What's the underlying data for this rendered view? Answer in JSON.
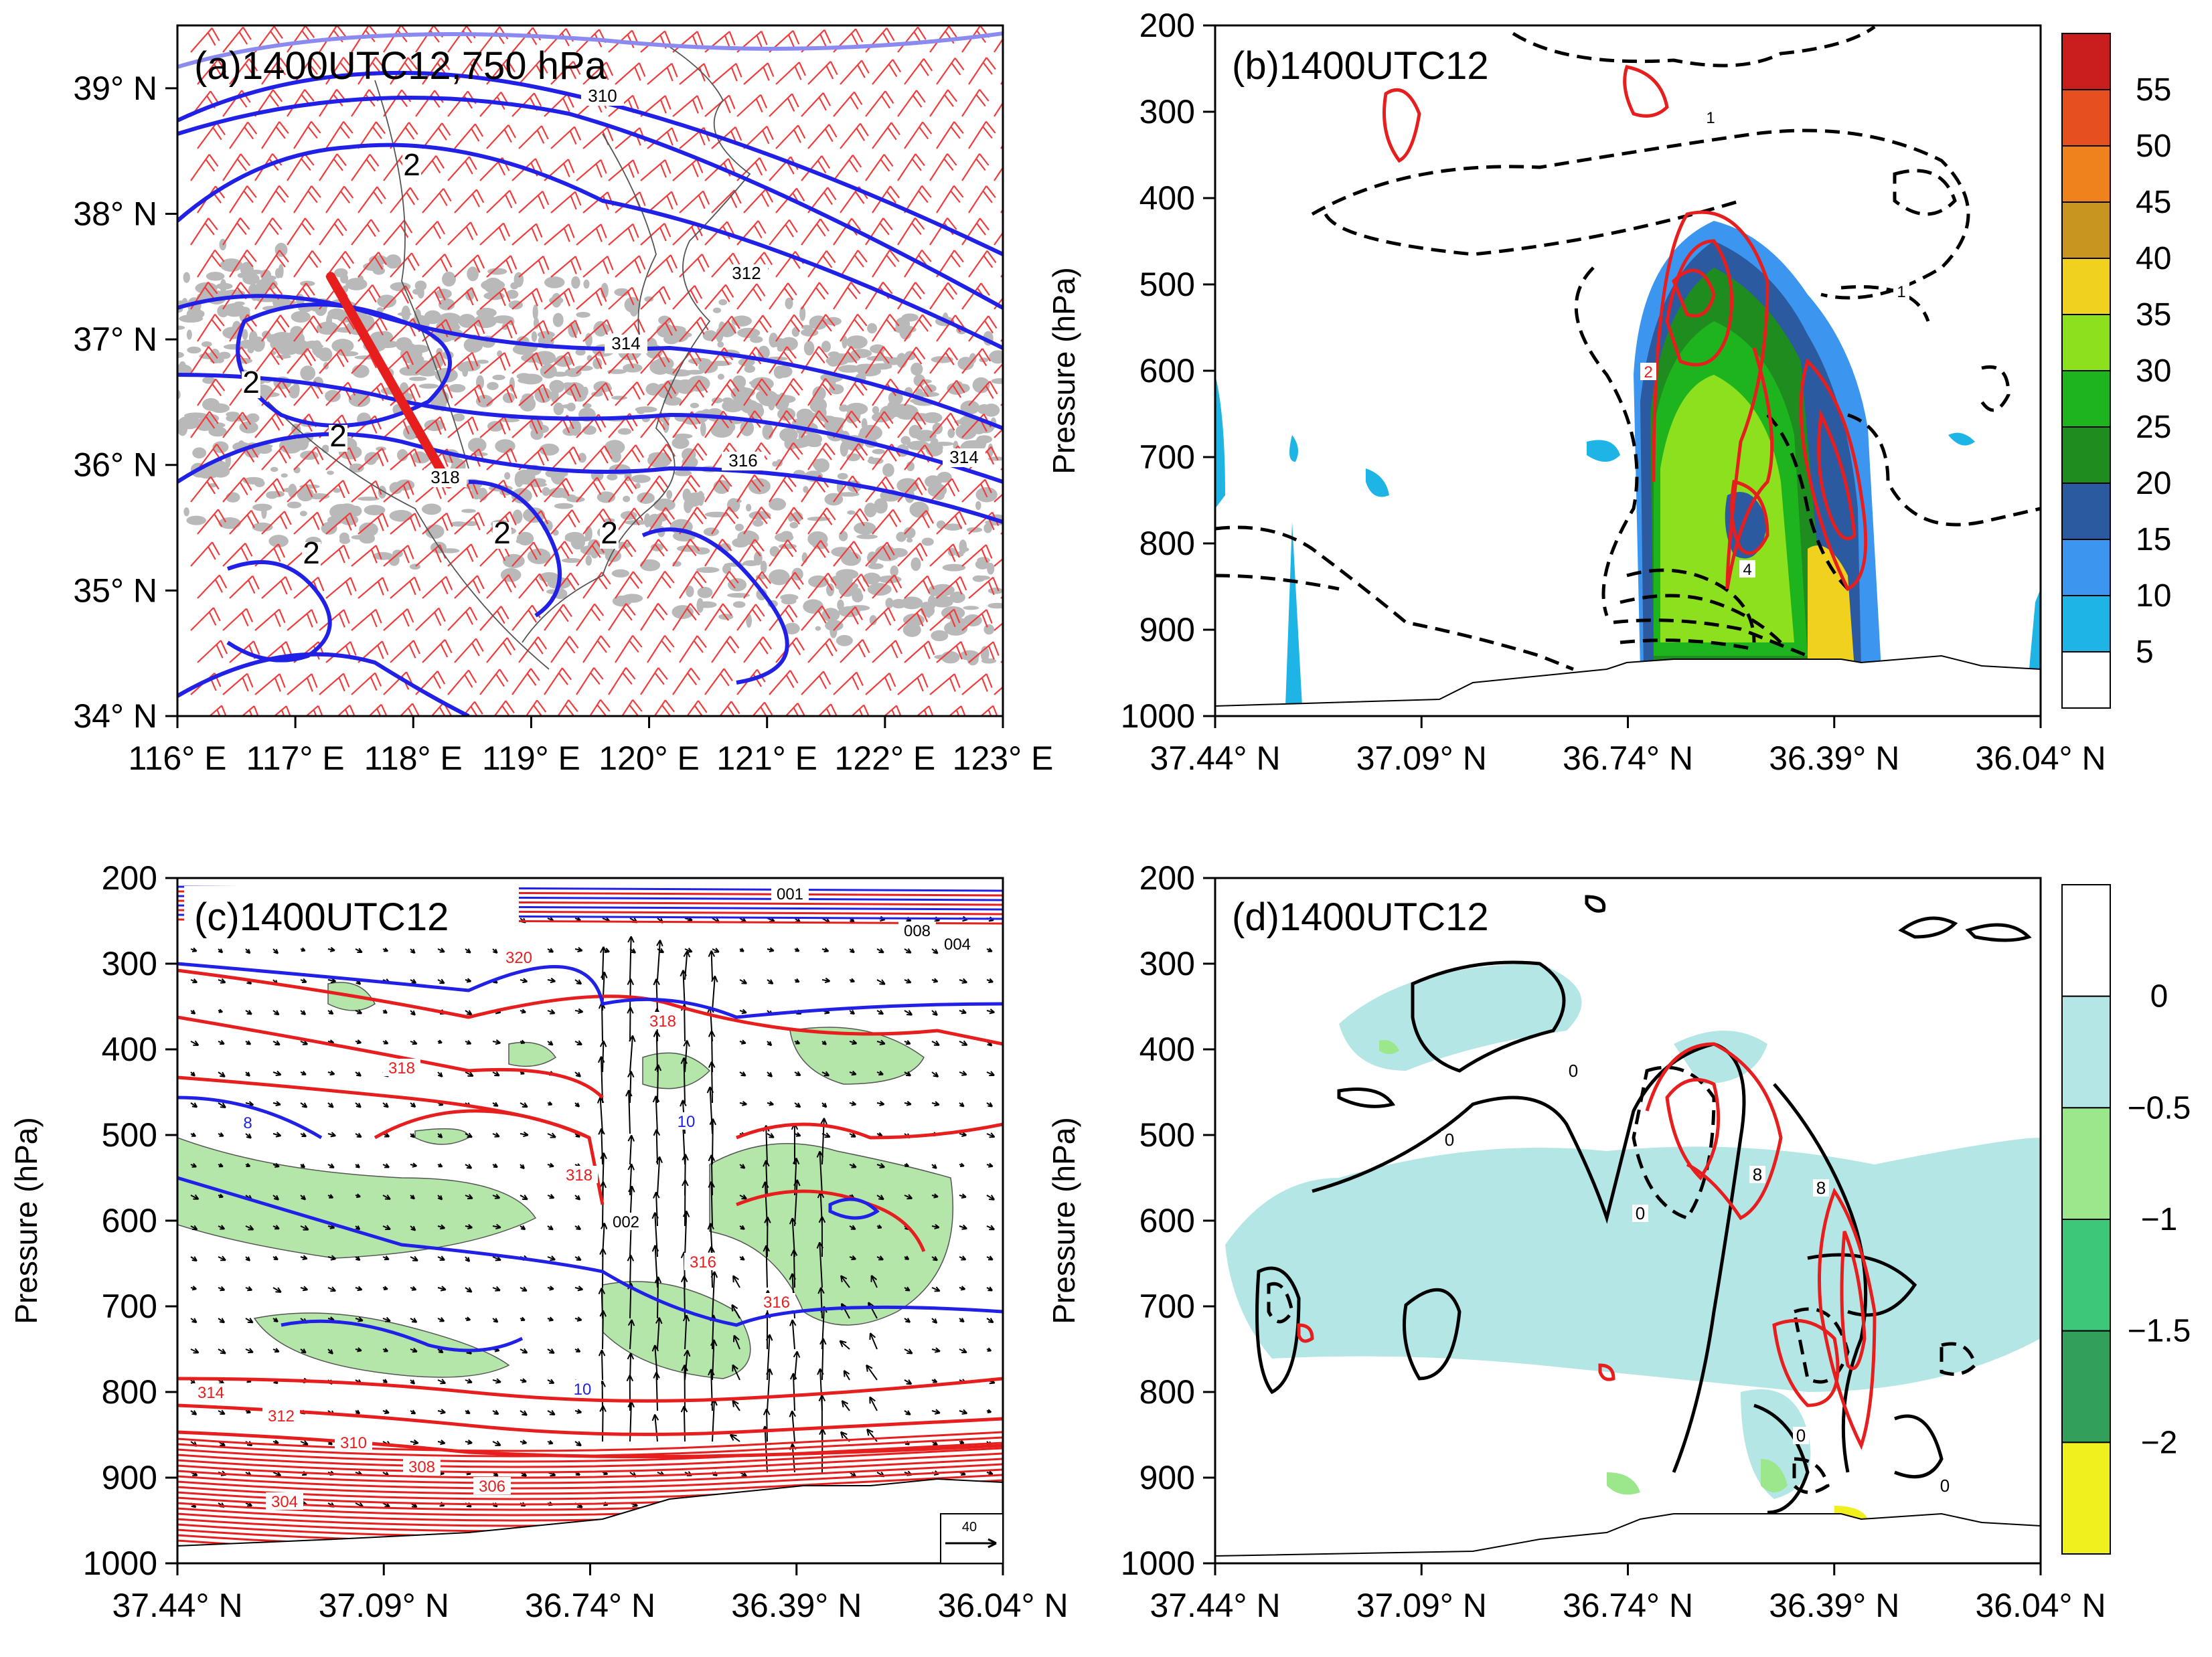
{
  "chart_data": [
    {
      "type": "map",
      "title": "(a)1400UTC12,750 hPa",
      "x_ticks": [
        "116° E",
        "117° E",
        "118° E",
        "119° E",
        "120° E",
        "121° E",
        "122° E",
        "123° E"
      ],
      "y_ticks": [
        "39° N",
        "38° N",
        "37° N",
        "36° N",
        "35° N",
        "34° N"
      ],
      "xlim": [
        116,
        123
      ],
      "ylim": [
        34,
        39.5
      ],
      "contour_labels": [
        "2",
        "2",
        "2",
        "2",
        "2",
        "2",
        "312",
        "314",
        "314",
        "316",
        "318",
        "310"
      ],
      "cross_section_line": {
        "from": [
          117.3,
          37.5
        ],
        "to": [
          118.3,
          35.85
        ]
      }
    },
    {
      "type": "heatmap",
      "title": "(b)1400UTC12",
      "ylabel": "Pressure (hPa)",
      "x_ticks": [
        "37.44° N",
        "37.09° N",
        "36.74° N",
        "36.39° N",
        "36.04° N"
      ],
      "y_ticks": [
        "200",
        "300",
        "400",
        "500",
        "600",
        "700",
        "800",
        "900",
        "1000"
      ],
      "ylim": [
        1000,
        200
      ],
      "colorbar": {
        "levels": [
          "5",
          "10",
          "15",
          "20",
          "25",
          "30",
          "35",
          "40",
          "45",
          "50",
          "55"
        ],
        "colors": [
          "#ffffff",
          "#1eb4e6",
          "#3c96f0",
          "#2c5aa0",
          "#1e8c1e",
          "#1eb41e",
          "#8ce01e",
          "#f0d21e",
          "#c8961e",
          "#f0821e",
          "#e6501e",
          "#c81e1e"
        ]
      },
      "contour_labels": [
        "1",
        "2",
        "4",
        "1"
      ]
    },
    {
      "type": "heatmap",
      "title": "(c)1400UTC12",
      "ylabel": "Pressure (hPa)",
      "x_ticks": [
        "37.44° N",
        "37.09° N",
        "36.74° N",
        "36.39° N",
        "36.04° N"
      ],
      "y_ticks": [
        "200",
        "300",
        "400",
        "500",
        "600",
        "700",
        "800",
        "900",
        "1000"
      ],
      "ylim": [
        1000,
        200
      ],
      "contour_labels": [
        "320",
        "318",
        "318",
        "318",
        "316",
        "316",
        "314",
        "312",
        "310",
        "308",
        "306",
        "304",
        "8",
        "10",
        "10",
        "001",
        "008",
        "004",
        "002"
      ],
      "reference_vector": "40"
    },
    {
      "type": "heatmap",
      "title": "(d)1400UTC12",
      "ylabel": "Pressure (hPa)",
      "x_ticks": [
        "37.44° N",
        "37.09° N",
        "36.74° N",
        "36.39° N",
        "36.04° N"
      ],
      "y_ticks": [
        "200",
        "300",
        "400",
        "500",
        "600",
        "700",
        "800",
        "900",
        "1000"
      ],
      "ylim": [
        1000,
        200
      ],
      "colorbar": {
        "levels": [
          "0",
          "−0.5",
          "−1",
          "−1.5",
          "−2"
        ],
        "colors": [
          "#ffffff",
          "#b4e6e6",
          "#9ce68c",
          "#3cc878",
          "#32a05a",
          "#f0f01e"
        ]
      },
      "contour_labels": [
        "0",
        "0",
        "0",
        "0",
        "0",
        "8",
        "8"
      ]
    }
  ]
}
